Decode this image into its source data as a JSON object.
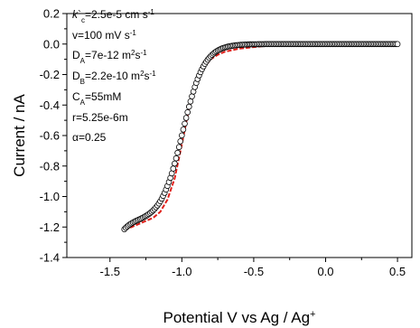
{
  "chart_data": {
    "type": "scatter",
    "xlabel_parts": {
      "main": "Potential V vs Ag / Ag",
      "sup": "+"
    },
    "ylabel": "Current / nA",
    "xlim": [
      -1.8,
      0.6
    ],
    "ylim": [
      -1.4,
      0.2
    ],
    "xticks": [
      -1.5,
      -1.0,
      -0.5,
      0.0,
      0.5
    ],
    "xtick_labels": [
      "-1.5",
      "-1.0",
      "-0.5",
      "0.0",
      "0.5"
    ],
    "yticks": [
      0.2,
      0.0,
      -0.2,
      -0.4,
      -0.6,
      -0.8,
      -1.0,
      -1.2,
      -1.4
    ],
    "ytick_labels": [
      "0.2",
      "0.0",
      "-0.2",
      "-0.4",
      "-0.6",
      "-0.8",
      "-1.0",
      "-1.2",
      "-1.4"
    ],
    "annotations": [
      {
        "id": "kc",
        "italic": "k",
        "main": "`",
        "sub": "c",
        "rest": "=2.5e-5 cm s",
        "sup": "-1"
      },
      {
        "id": "v",
        "main": "v=100 mV s",
        "sup": "-1"
      },
      {
        "id": "DA",
        "main": "D",
        "sub": "A",
        "rest": "=7e-12 m",
        "sup": "2",
        "rest2": "s",
        "sup2": "-1"
      },
      {
        "id": "DB",
        "main": "D",
        "sub": "B",
        "rest": "=2.2e-10 m",
        "sup": "2",
        "rest2": "s",
        "sup2": "-1"
      },
      {
        "id": "CA",
        "main": "C",
        "sub": "A",
        "rest": "=55mM"
      },
      {
        "id": "r",
        "main": "r=5.25e-6m"
      },
      {
        "id": "alpha",
        "main": "α=0.25"
      }
    ],
    "series": [
      {
        "style": "red-dashed-line",
        "color": "#e0201a",
        "x": [
          -1.4,
          -1.35,
          -1.3,
          -1.25,
          -1.2,
          -1.15,
          -1.1,
          -1.05,
          -1.0,
          -0.95,
          -0.9,
          -0.85,
          -0.8,
          -0.75,
          -0.7,
          -0.65,
          -0.6,
          -0.55,
          -0.5,
          -0.45,
          -0.4
        ],
        "y": [
          -1.22,
          -1.2,
          -1.18,
          -1.16,
          -1.14,
          -1.1,
          -1.02,
          -0.88,
          -0.66,
          -0.42,
          -0.26,
          -0.16,
          -0.1,
          -0.07,
          -0.05,
          -0.04,
          -0.03,
          -0.025,
          -0.02,
          -0.015,
          -0.01
        ]
      },
      {
        "style": "open-circles",
        "color": "#000000",
        "x_start": -1.4,
        "x_end": 0.5,
        "step": 0.01
      }
    ]
  }
}
